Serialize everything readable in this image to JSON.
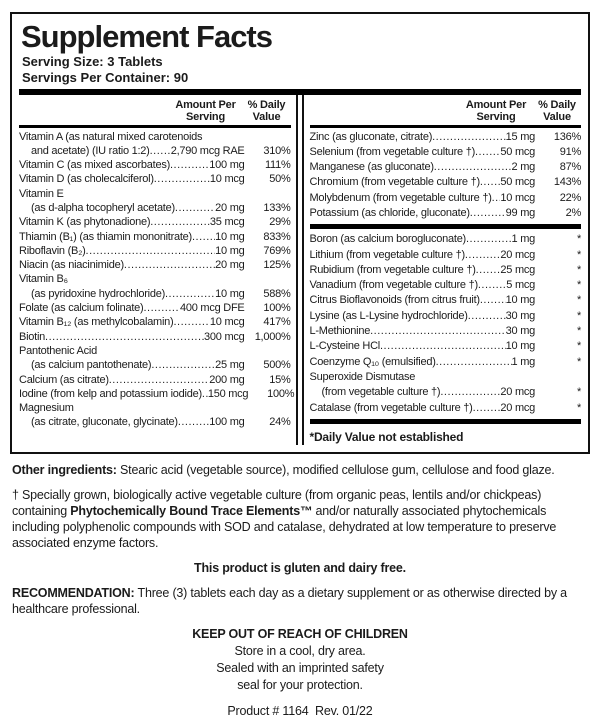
{
  "label": {
    "title": "Supplement Facts",
    "serving_size": "Serving Size: 3 Tablets",
    "servings_per_container": "Servings Per Container: 90",
    "header_amount_1": "Amount Per",
    "header_amount_2": "Serving",
    "header_dv_1": "% Daily",
    "header_dv_2": "Value"
  },
  "left_column": {
    "rows": [
      {
        "name": "Vitamin A (as natural mixed carotenoids",
        "name2": "and acetate) (IU ratio 1:2)",
        "amount": "2,790 mcg RAE",
        "dv": "310%"
      },
      {
        "name": "Vitamin C (as mixed ascorbates)",
        "amount": "100 mg",
        "dv": "111%"
      },
      {
        "name": "Vitamin D (as cholecalciferol)",
        "amount": "10 mcg",
        "dv": "50%"
      },
      {
        "name": "Vitamin E",
        "name2": "(as d-alpha tocopheryl acetate)",
        "amount": "20 mg",
        "dv": "133%"
      },
      {
        "name": "Vitamin K (as phytonadione)",
        "amount": "35 mcg",
        "dv": "29%"
      },
      {
        "name": "Thiamin (B₁) (as thiamin mononitrate)",
        "amount": "10 mg",
        "dv": "833%"
      },
      {
        "name": "Riboflavin (B₂)",
        "amount": "10 mg",
        "dv": "769%"
      },
      {
        "name": "Niacin (as niacinimide)",
        "amount": "20 mg",
        "dv": "125%"
      },
      {
        "name": "Vitamin B₆",
        "name2": "(as pyridoxine hydrochloride)",
        "amount": "10 mg",
        "dv": "588%"
      },
      {
        "name": "Folate (as calcium folinate)",
        "amount": "400 mcg DFE",
        "dv": "100%"
      },
      {
        "name": "Vitamin B₁₂ (as methylcobalamin)",
        "amount": "10 mcg",
        "dv": "417%"
      },
      {
        "name": "Biotin",
        "amount": "300 mcg",
        "dv": "1,000%"
      },
      {
        "name": "Pantothenic Acid",
        "name2": "(as calcium pantothenate)",
        "amount": "25 mg",
        "dv": "500%"
      },
      {
        "name": "Calcium (as citrate)",
        "amount": "200 mg",
        "dv": "15%"
      },
      {
        "name": "Iodine (from kelp and potassium iodide)",
        "amount": "150 mcg",
        "dv": "100%"
      },
      {
        "name": "Magnesium",
        "name2": "(as citrate, gluconate, glycinate)",
        "amount": "100 mg",
        "dv": "24%"
      }
    ]
  },
  "right_column": {
    "rows_top": [
      {
        "name": "Zinc (as gluconate, citrate)",
        "amount": "15 mg",
        "dv": "136%"
      },
      {
        "name": "Selenium (from vegetable culture †)",
        "amount": "50 mcg",
        "dv": "91%"
      },
      {
        "name": "Manganese (as gluconate)",
        "amount": "2 mg",
        "dv": "87%"
      },
      {
        "name": "Chromium (from vegetable culture †)",
        "amount": "50 mcg",
        "dv": "143%"
      },
      {
        "name": "Molybdenum (from vegetable culture †)",
        "amount": "10 mcg",
        "dv": "22%"
      },
      {
        "name": "Potassium (as chloride, gluconate)",
        "amount": "99 mg",
        "dv": "2%"
      }
    ],
    "rows_starred": [
      {
        "name": "Boron (as calcium borogluconate)",
        "amount": "1 mg",
        "dv": "*"
      },
      {
        "name": "Lithium (from vegetable culture †)",
        "amount": "20 mcg",
        "dv": "*"
      },
      {
        "name": "Rubidium (from vegetable culture †)",
        "amount": "25 mcg",
        "dv": "*"
      },
      {
        "name": "Vanadium (from vegetable culture †)",
        "amount": "5 mcg",
        "dv": "*"
      },
      {
        "name": "Citrus Bioflavonoids (from citrus fruit)",
        "amount": "10 mg",
        "dv": "*"
      },
      {
        "name": "Lysine (as L-Lysine hydrochloride)",
        "amount": "30 mg",
        "dv": "*"
      },
      {
        "name": "L-Methionine",
        "amount": "30 mg",
        "dv": "*"
      },
      {
        "name": "L-Cysteine HCl",
        "amount": "10 mg",
        "dv": "*"
      },
      {
        "name": "Coenzyme Q₁₀ (emulsified)",
        "amount": "1 mg",
        "dv": "*"
      },
      {
        "name": "Superoxide Dismutase",
        "name2": "(from vegetable culture †)",
        "amount": "20 mcg",
        "dv": "*"
      },
      {
        "name": "Catalase (from vegetable culture †)",
        "amount": "20 mcg",
        "dv": "*"
      }
    ],
    "footnote": "*Daily Value not established"
  },
  "footer": {
    "other_ingredients_label": "Other ingredients:",
    "other_ingredients_text": "Stearic acid (vegetable source), modified cellulose gum, cellulose and food glaze.",
    "dagger_pre": "† Specially grown, biologically active vegetable culture (from organic peas, lentils and/or chickpeas) containing ",
    "dagger_bold": "Phytochemically Bound Trace Elements™",
    "dagger_post": " and/or naturally associated phytochemicals including polyphenolic compounds with SOD and catalase, dehydrated at low temperature to preserve associated enzyme factors.",
    "gluten_free": "This product is gluten and dairy free.",
    "recommendation_label": "RECOMMENDATION:",
    "recommendation_text": "Three (3) tablets each day as a dietary supplement or as otherwise directed by a healthcare professional.",
    "keep_out": "KEEP OUT OF REACH OF CHILDREN",
    "store": "Store in a cool, dry area.",
    "sealed_1": "Sealed with an imprinted safety",
    "sealed_2": "seal for your protection.",
    "product_line": "Product # 1164  Rev. 01/22"
  },
  "colors": {
    "text": "#1b1b1b",
    "bar": "#000000",
    "background": "#ffffff"
  }
}
